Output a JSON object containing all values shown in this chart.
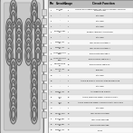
{
  "bg_color": "#f0f0f0",
  "connector_bg": "#d8d8d8",
  "connector_outline": "#888888",
  "table_header_bg": "#bbbbbb",
  "table_alt_bg": "#e0e0e0",
  "table_white_bg": "#f8f8f8",
  "header_cols": [
    "Pin",
    "Circuit",
    "Gauge",
    "Circuit Function"
  ],
  "rows": [
    [
      "1",
      "SPEAKER\nREL",
      "3",
      "LOW-RANGE SUBWOOFER AMP, RADIO CONTROL MODULE\nMASTER CTRL"
    ],
    [
      "2",
      "-",
      "7",
      "Still load"
    ],
    [
      "3",
      "-",
      "7",
      "Still load"
    ],
    [
      "4",
      "-",
      "7",
      "Still load"
    ],
    [
      "5",
      "POWER CTRL\nREL",
      "7",
      "POWER ANTENNA ACTIVATION"
    ],
    [
      "6",
      "-",
      "7",
      "Still load"
    ],
    [
      "7",
      "SPEED INT\nREL",
      "18",
      "LEFT FRONT SPEAKER +"
    ],
    [
      "8",
      "SPEED INT\nREL",
      "18",
      "LEFT FRONT SPEAKER +"
    ],
    [
      "9",
      "LH FRONT SPK\nGND",
      "18",
      "RIGHT REAR SPEAKER +"
    ],
    [
      "10",
      "LH FRONT SPK\nGND",
      "20",
      "RIGHT FRONT SPEAKER +"
    ],
    [
      "11",
      "MICROPHONE\nREL",
      "20",
      "RIGHT FRONT SPEAKER -"
    ],
    [
      "12",
      "MICRO INT\nREL",
      "14",
      "GROUND"
    ],
    [
      "13",
      "-",
      "7",
      "Still load"
    ],
    [
      "14",
      "-",
      "7",
      "AUDIO B-CIRCUIT LOW-VOLTAGE PROTECTION"
    ],
    [
      "15",
      "-",
      "7",
      "Still load"
    ],
    [
      "16",
      "SPEED INT\nREL",
      "20",
      "ACCELERATION SIGNAL"
    ],
    [
      "17",
      "INFO\nREL",
      "20",
      "AUDIO STEERING WHEEL SWITCH SIGNAL"
    ],
    [
      "18",
      "INFO\nREL",
      "20",
      "AUDIO STEERING WHEEL SWITCH SIGNAL SET CONN"
    ],
    [
      "19",
      "-",
      "7",
      "Still load"
    ],
    [
      "20",
      "FRONT SPK\nREL",
      "14",
      "LEFT FRONT SPEAKER"
    ],
    [
      "21",
      "RADIO REL\nREL",
      "18",
      "LEFT HOLE SPEAKER"
    ],
    [
      "22",
      "RADIO REL\nREL",
      "18",
      "RIGHT REAR SPEAKER"
    ],
    [
      "23",
      "SPEED INT\nREL",
      "20",
      "SPARE"
    ]
  ],
  "pin_groups": [
    [
      [
        0.28,
        0.93
      ],
      [
        0.72,
        0.93
      ]
    ],
    [
      [
        0.28,
        0.86
      ],
      [
        0.72,
        0.86
      ]
    ],
    [
      [
        0.2,
        0.79
      ],
      [
        0.4,
        0.79
      ],
      [
        0.6,
        0.79
      ],
      [
        0.8,
        0.79
      ]
    ],
    [
      [
        0.2,
        0.72
      ],
      [
        0.4,
        0.72
      ],
      [
        0.6,
        0.72
      ],
      [
        0.8,
        0.72
      ]
    ],
    [
      [
        0.2,
        0.65
      ],
      [
        0.4,
        0.65
      ],
      [
        0.6,
        0.65
      ],
      [
        0.8,
        0.65
      ]
    ],
    [
      [
        0.2,
        0.58
      ],
      [
        0.4,
        0.58
      ],
      [
        0.6,
        0.58
      ],
      [
        0.8,
        0.58
      ]
    ],
    [
      [
        0.28,
        0.49
      ],
      [
        0.72,
        0.49
      ]
    ],
    [
      [
        0.28,
        0.42
      ],
      [
        0.72,
        0.42
      ]
    ],
    [
      [
        0.28,
        0.35
      ],
      [
        0.72,
        0.35
      ]
    ],
    [
      [
        0.28,
        0.28
      ],
      [
        0.72,
        0.28
      ]
    ],
    [
      [
        0.28,
        0.21
      ],
      [
        0.72,
        0.21
      ]
    ],
    [
      [
        0.28,
        0.14
      ],
      [
        0.72,
        0.14
      ]
    ]
  ]
}
